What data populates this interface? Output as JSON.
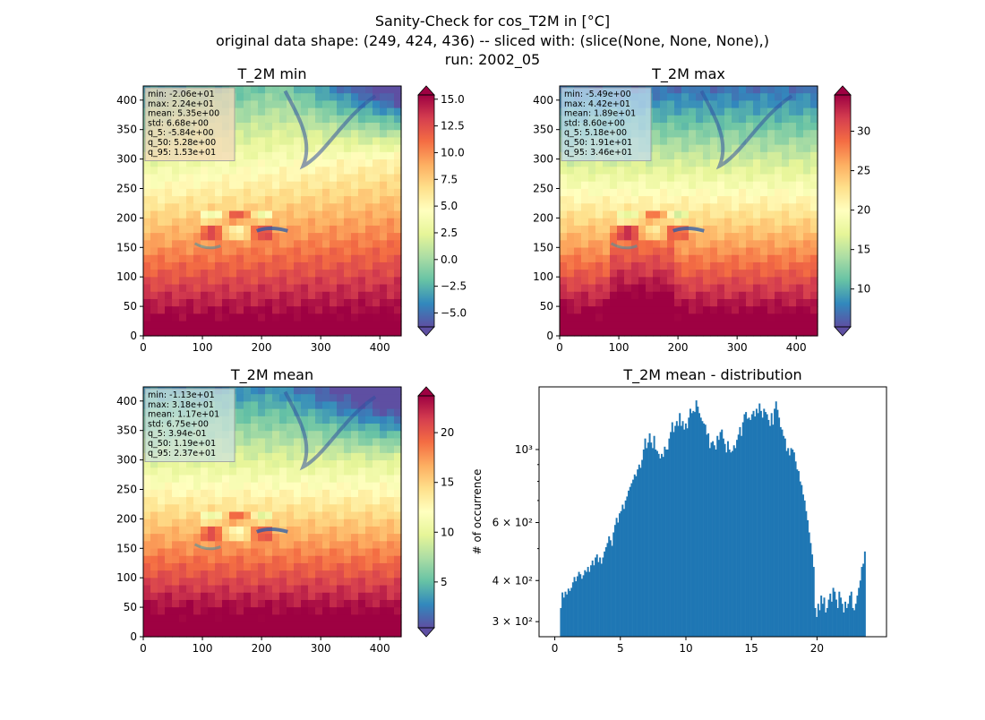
{
  "figure": {
    "title_lines": [
      "Sanity-Check for cos_T2M in [°C]",
      "original data shape: (249, 424, 436) -- sliced with: (slice(None, None, None),)",
      "run: 2002_05"
    ]
  },
  "chart_data": [
    {
      "type": "heatmap",
      "title": "T_2M min",
      "xticks": [
        "0",
        "100",
        "200",
        "300",
        "400"
      ],
      "yticks": [
        "0",
        "50",
        "100",
        "150",
        "200",
        "250",
        "300",
        "350",
        "400"
      ],
      "xlim": [
        0,
        436
      ],
      "ylim": [
        0,
        424
      ],
      "colormap": "Spectral_r",
      "colorbar": {
        "ticks": [
          "−5.0",
          "−2.5",
          "0.0",
          "2.5",
          "5.0",
          "7.5",
          "10.0",
          "12.5",
          "15.0"
        ],
        "range": [
          -6.3,
          15.4
        ],
        "extend": "both"
      },
      "stats": [
        "min: -2.06e+01",
        "max: 2.24e+01",
        "mean: 5.35e+00",
        "std: 6.68e+00",
        "q_5: -5.84e+00",
        "q_50: 5.28e+00",
        "q_95: 1.53e+01"
      ],
      "stats_box_color": "#f4d9bc"
    },
    {
      "type": "heatmap",
      "title": "T_2M max",
      "xticks": [
        "0",
        "100",
        "200",
        "300",
        "400"
      ],
      "yticks": [
        "0",
        "50",
        "100",
        "150",
        "200",
        "250",
        "300",
        "350",
        "400"
      ],
      "xlim": [
        0,
        436
      ],
      "ylim": [
        0,
        424
      ],
      "colormap": "Spectral_r",
      "colorbar": {
        "ticks": [
          "10",
          "15",
          "20",
          "25",
          "30"
        ],
        "range": [
          5.2,
          34.6
        ],
        "extend": "both"
      },
      "stats": [
        "min: -5.49e+00",
        "max: 4.42e+01",
        "mean: 1.89e+01",
        "std: 8.60e+00",
        "q_5: 5.18e+00",
        "q_50: 1.91e+01",
        "q_95: 3.46e+01"
      ],
      "stats_box_color": "#c4dcec"
    },
    {
      "type": "heatmap",
      "title": "T_2M mean",
      "xticks": [
        "0",
        "100",
        "200",
        "300",
        "400"
      ],
      "yticks": [
        "0",
        "50",
        "100",
        "150",
        "200",
        "250",
        "300",
        "350",
        "400"
      ],
      "xlim": [
        0,
        436
      ],
      "ylim": [
        0,
        424
      ],
      "colormap": "Spectral_r",
      "colorbar": {
        "ticks": [
          "5",
          "10",
          "15",
          "20"
        ],
        "range": [
          0.4,
          23.7
        ],
        "extend": "both"
      },
      "stats": [
        "min: -1.13e+01",
        "max: 3.18e+01",
        "mean: 1.17e+01",
        "std: 6.75e+00",
        "q_5: 3.94e-01",
        "q_50: 1.19e+01",
        "q_95: 2.37e+01"
      ],
      "stats_box_color": "#cfe3dc"
    },
    {
      "type": "bar",
      "title": "T_2M mean - distribution",
      "ylabel": "# of occurrence",
      "xlabel": "",
      "xlim": [
        -1.2,
        25.3
      ],
      "ylim": [
        270,
        1550
      ],
      "yscale": "log",
      "color": "#1f77b4",
      "xticks": [
        "0",
        "5",
        "10",
        "15",
        "20"
      ],
      "yticks": [
        "3 × 10²",
        "4 × 10²",
        "6 × 10²",
        "10³"
      ],
      "bin_range": [
        0.4,
        23.7
      ],
      "values": [
        330,
        368,
        355,
        370,
        363,
        378,
        372,
        380,
        395,
        410,
        398,
        412,
        425,
        418,
        405,
        415,
        430,
        425,
        440,
        425,
        445,
        460,
        445,
        470,
        480,
        455,
        470,
        450,
        470,
        490,
        505,
        520,
        545,
        530,
        510,
        560,
        590,
        620,
        600,
        640,
        650,
        680,
        660,
        700,
        720,
        750,
        770,
        790,
        810,
        840,
        830,
        870,
        900,
        880,
        930,
        1000,
        1080,
        1010,
        1050,
        1120,
        1050,
        1010,
        1100,
        1000,
        990,
        970,
        940,
        970,
        950,
        1020,
        1000,
        1000,
        1080,
        1130,
        1210,
        1130,
        1180,
        1220,
        1180,
        1290,
        1180,
        1220,
        1150,
        1200,
        1160,
        1250,
        1330,
        1290,
        1310,
        1300,
        1410,
        1350,
        1290,
        1250,
        1220,
        1200,
        1190,
        1110,
        1120,
        1010,
        1050,
        1060,
        1030,
        1000,
        1100,
        1070,
        1130,
        1150,
        1080,
        1040,
        980,
        1060,
        1000,
        980,
        990,
        1030,
        1010,
        1070,
        1110,
        1170,
        1100,
        1210,
        1280,
        1300,
        1240,
        1250,
        1230,
        1280,
        1310,
        1260,
        1330,
        1290,
        1380,
        1310,
        1250,
        1330,
        1300,
        1280,
        1230,
        1180,
        1290,
        1190,
        1330,
        1400,
        1320,
        1250,
        1170,
        1150,
        1100,
        1080,
        990,
        1010,
        960,
        1010,
        1000,
        980,
        920,
        870,
        860,
        800,
        780,
        730,
        700,
        650,
        610,
        560,
        520,
        480,
        440,
        330,
        310,
        340,
        325,
        360,
        340,
        355,
        320,
        330,
        350,
        365,
        345,
        380,
        370,
        350,
        330,
        370,
        355,
        340,
        320,
        345,
        330,
        340,
        360,
        370,
        330,
        325,
        340,
        360,
        380,
        400,
        440,
        450,
        490
      ]
    }
  ]
}
